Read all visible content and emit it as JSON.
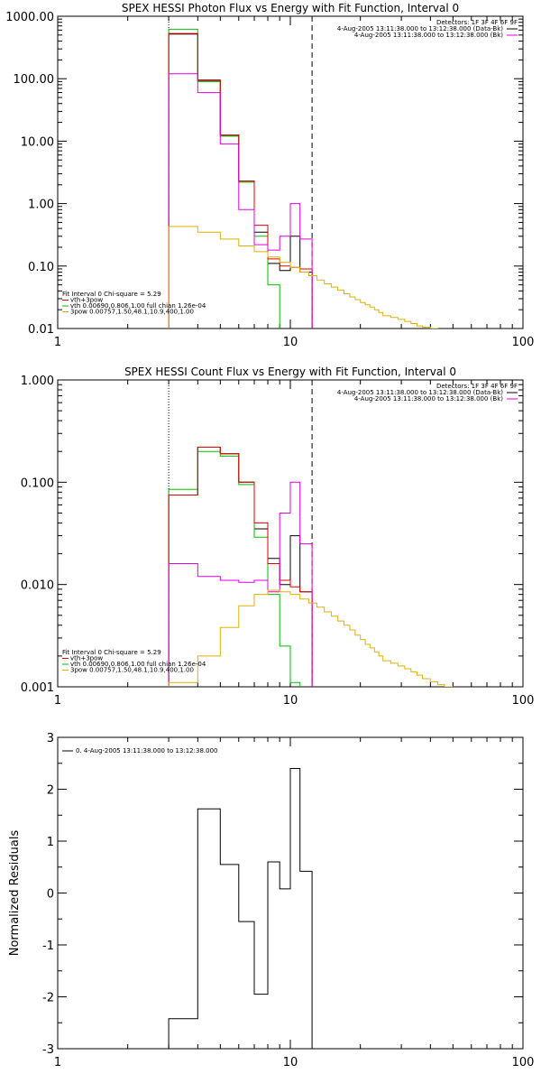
{
  "chart_data": [
    {
      "type": "line",
      "title": "SPEX HESSI Photon Flux vs Energy with Fit Function, Interval 0",
      "scale": {
        "x": "log",
        "y": "log"
      },
      "xlim": [
        1,
        100
      ],
      "ylim": [
        0.01,
        1000
      ],
      "xticks": [
        "1",
        "10",
        "100"
      ],
      "yticks": [
        "0.01",
        "0.10",
        "1.00",
        "10.00",
        "100.00",
        "1000.00"
      ],
      "ytick_values": [
        0.01,
        0.1,
        1,
        10,
        100,
        1000
      ],
      "vlines": [
        {
          "x": 3,
          "style": "dotted"
        },
        {
          "x": 12.4,
          "style": "dashed"
        }
      ],
      "legend_right": [
        {
          "text": "Detectors: 1F 3F 4F 6F 9F",
          "color": ""
        },
        {
          "text": "4-Aug-2005 13:11:38.000 to 13:12:38.000 (Data-Bk)",
          "color": "#000000"
        },
        {
          "text": "4-Aug-2005 13:11:38.000 to 13:12:38.000 (Bk)",
          "color": "#e000e0"
        }
      ],
      "legend_left": [
        {
          "text": "Fit Interval 0   Chi-square = 5.29",
          "color": ""
        },
        {
          "text": "vth+3pow",
          "color": "#e00000"
        },
        {
          "text": "vth 0.00690,0.806,1.00   full chian 1.26e-04",
          "color": "#00c000"
        },
        {
          "text": "3pow 0.00757,1.50,48.1,10.9,400,1.00",
          "color": "#e0b000"
        }
      ],
      "series": [
        {
          "color": "#000000",
          "edges": [
            3,
            4,
            5,
            6,
            7,
            8,
            9,
            10,
            11,
            12.4
          ],
          "values": [
            520,
            95,
            12.5,
            2.3,
            0.35,
            0.11,
            0.085,
            0.3,
            0.08
          ]
        },
        {
          "color": "#00c000",
          "edges": [
            3,
            4,
            5,
            6,
            7,
            8,
            9
          ],
          "values": [
            620,
            90,
            12,
            2.2,
            0.3,
            0.05
          ]
        },
        {
          "color": "#e00000",
          "edges": [
            3,
            4,
            5,
            6,
            7,
            8,
            9,
            10,
            11,
            12.4
          ],
          "values": [
            530,
            93,
            12.5,
            2.3,
            0.45,
            0.13,
            0.1,
            0.095,
            0.09
          ]
        },
        {
          "color": "#e000e0",
          "edges": [
            3,
            4,
            5,
            6,
            7,
            8,
            9,
            10,
            11,
            12.4
          ],
          "values": [
            120,
            60,
            9.0,
            0.8,
            0.22,
            0.18,
            0.3,
            1.0,
            0.27
          ]
        },
        {
          "color": "#e0b000",
          "edges": [
            3,
            4,
            5,
            6,
            7,
            8,
            9,
            10,
            11,
            12,
            13,
            14,
            15,
            16,
            17,
            18,
            19,
            20,
            21,
            22,
            23,
            24,
            25,
            27,
            29,
            31,
            33,
            35,
            37,
            40,
            43
          ],
          "values": [
            0.43,
            0.35,
            0.27,
            0.21,
            0.17,
            0.14,
            0.115,
            0.095,
            0.08,
            0.07,
            0.06,
            0.052,
            0.046,
            0.041,
            0.036,
            0.032,
            0.029,
            0.026,
            0.024,
            0.022,
            0.02,
            0.018,
            0.016,
            0.015,
            0.014,
            0.013,
            0.012,
            0.011,
            0.0105,
            0.01
          ]
        }
      ]
    },
    {
      "type": "line",
      "title": "SPEX HESSI Count Flux vs Energy with Fit Function, Interval 0",
      "ylabel": "",
      "scale": {
        "x": "log",
        "y": "log"
      },
      "xlim": [
        1,
        100
      ],
      "ylim": [
        0.001,
        1
      ],
      "xticks": [
        "1",
        "10",
        "100"
      ],
      "yticks": [
        "0.001",
        "0.010",
        "0.100",
        "1.000"
      ],
      "ytick_values": [
        0.001,
        0.01,
        0.1,
        1
      ],
      "vlines": [
        {
          "x": 3,
          "style": "dotted"
        },
        {
          "x": 12.4,
          "style": "dashed"
        }
      ],
      "legend_right": [
        {
          "text": "Detectors: 1F 3F 4F 6F 9F",
          "color": ""
        },
        {
          "text": "4-Aug-2005 13:11:38.000 to 13:12:38.000 (Data-Bk)",
          "color": "#000000"
        },
        {
          "text": "4-Aug-2005 13:11:38.000 to 13:12:38.000 (Bk)",
          "color": "#e000e0"
        }
      ],
      "legend_left": [
        {
          "text": "Fit Interval 0   Chi-square = 5.29",
          "color": ""
        },
        {
          "text": "vth+3pow",
          "color": "#e00000"
        },
        {
          "text": "vth 0.00690,0.806,1.00   full chian 1.26e-04",
          "color": "#00c000"
        },
        {
          "text": "3pow 0.00757,1.50,48.1,10.9,400,1.00",
          "color": "#e0b000"
        }
      ],
      "series": [
        {
          "color": "#000000",
          "edges": [
            3,
            4,
            5,
            6,
            7,
            8,
            9,
            10,
            11,
            12.4
          ],
          "values": [
            0.075,
            0.22,
            0.19,
            0.1,
            0.035,
            0.018,
            0.01,
            0.03,
            0.0085
          ]
        },
        {
          "color": "#00c000",
          "edges": [
            3,
            4,
            5,
            6,
            7,
            8,
            9,
            10,
            11
          ],
          "values": [
            0.085,
            0.2,
            0.18,
            0.095,
            0.029,
            0.008,
            0.0025,
            0.0011
          ]
        },
        {
          "color": "#e00000",
          "edges": [
            3,
            4,
            5,
            6,
            7,
            8,
            9,
            10,
            11,
            12.4
          ],
          "values": [
            0.075,
            0.22,
            0.19,
            0.1,
            0.04,
            0.016,
            0.011,
            0.0095,
            0.0085
          ]
        },
        {
          "color": "#e000e0",
          "edges": [
            3,
            4,
            5,
            6,
            7,
            8,
            9,
            10,
            11,
            12.4
          ],
          "values": [
            0.016,
            0.012,
            0.011,
            0.0105,
            0.011,
            0.0085,
            0.05,
            0.1,
            0.025
          ]
        },
        {
          "color": "#e0b000",
          "edges": [
            3,
            4,
            5,
            6,
            7,
            8,
            9,
            10,
            11,
            12,
            13,
            14,
            15,
            16,
            17,
            18,
            19,
            20,
            21,
            22,
            23,
            24,
            25,
            27,
            29,
            31,
            33,
            35,
            37,
            40,
            43,
            46,
            50
          ],
          "values": [
            0.0011,
            0.002,
            0.0038,
            0.0062,
            0.008,
            0.0088,
            0.0085,
            0.008,
            0.0072,
            0.0066,
            0.006,
            0.0054,
            0.0049,
            0.0044,
            0.004,
            0.0036,
            0.0032,
            0.0029,
            0.0026,
            0.0024,
            0.0022,
            0.002,
            0.0018,
            0.0017,
            0.0016,
            0.0015,
            0.0014,
            0.0013,
            0.0012,
            0.00112,
            0.00105,
            0.001
          ]
        }
      ]
    },
    {
      "type": "line",
      "title": "",
      "ylabel": "Normalized Residuals",
      "scale": {
        "x": "log",
        "y": "linear"
      },
      "xlim": [
        1,
        100
      ],
      "ylim": [
        -3,
        3
      ],
      "xticks": [
        "1",
        "10",
        "100"
      ],
      "yticks": [
        "-3",
        "-2",
        "-1",
        "0",
        "1",
        "2",
        "3"
      ],
      "ytick_values": [
        -3,
        -2,
        -1,
        0,
        1,
        2,
        3
      ],
      "legend_right": [],
      "legend_left": [
        {
          "text": "0. 4-Aug-2005 13:11:38.000 to 13:12:38.000",
          "color": "#000000"
        }
      ],
      "series": [
        {
          "color": "#000000",
          "edges": [
            3,
            4,
            5,
            6,
            7,
            8,
            9,
            10,
            11,
            12.4
          ],
          "values": [
            -2.42,
            1.62,
            0.55,
            -0.55,
            -1.95,
            0.6,
            0.08,
            2.4,
            0.42
          ]
        }
      ]
    }
  ]
}
